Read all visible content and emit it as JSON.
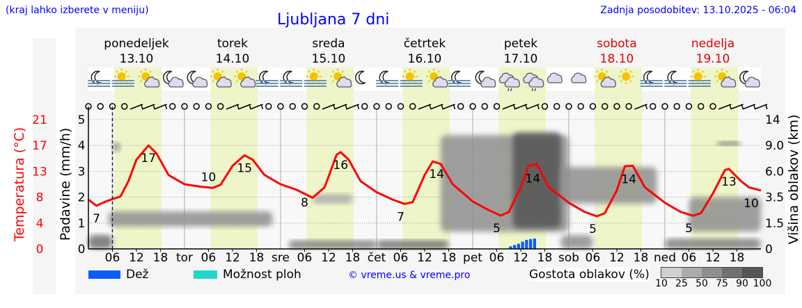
{
  "header": {
    "hint": "(kraj lahko izberete v meniju)",
    "title": "Ljubljana 7 dni",
    "updated": "Zadnja posodobitev: 13.10.2025 - 06:04"
  },
  "days": [
    {
      "name": "ponedeljek",
      "date": "13.10",
      "weekend": false
    },
    {
      "name": "torek",
      "date": "14.10",
      "weekend": false
    },
    {
      "name": "sreda",
      "date": "15.10",
      "weekend": false
    },
    {
      "name": "četrtek",
      "date": "16.10",
      "weekend": false
    },
    {
      "name": "petek",
      "date": "17.10",
      "weekend": false
    },
    {
      "name": "sobota",
      "date": "18.10",
      "weekend": true
    },
    {
      "name": "nedelja",
      "date": "19.10",
      "weekend": true
    }
  ],
  "legend": {
    "rain": "Dež",
    "showers": "Možnost ploh",
    "copyright": "© vreme.us & vreme.pro",
    "cloud_density": "Gostota oblakov (%)",
    "density_ticks": [
      "10",
      "25",
      "50",
      "75",
      "90",
      "100"
    ]
  },
  "colors": {
    "rain": "#0a5cff",
    "showers": "#20d8c8",
    "temperature": "#ff0000",
    "daylight": "#eef5c8",
    "link": "#0000ff",
    "weekend": "#e00000"
  },
  "chart_data": {
    "type": "line",
    "x_day_ticks": [
      "tor",
      "sre",
      "čet",
      "pet",
      "sob",
      "ned"
    ],
    "x_hour_ticks": [
      "06",
      "12",
      "18"
    ],
    "now_hour": 6,
    "left_axis": {
      "label": "Padavine (mm/h)",
      "range": [
        0,
        5
      ],
      "ticks": [
        "0",
        "1",
        "2",
        "3",
        "4",
        "5"
      ]
    },
    "temp_axis": {
      "label": "Temperatura (°C)",
      "range": [
        0,
        21
      ],
      "ticks": [
        "0",
        "4",
        "8",
        "13",
        "17",
        "21"
      ]
    },
    "right_axis": {
      "label": "Višina oblakov (km)",
      "ticks": [
        "0",
        "1.5",
        "3.5",
        "6.0",
        "9.0",
        "14"
      ]
    },
    "grid": true,
    "daylight_hours": [
      6.5,
      18.3
    ],
    "temperature": [
      [
        0,
        8
      ],
      [
        2,
        7
      ],
      [
        4,
        7.6
      ],
      [
        6,
        8.1
      ],
      [
        8,
        8.5
      ],
      [
        10,
        11
      ],
      [
        12,
        14.5
      ],
      [
        15,
        16.8
      ],
      [
        17,
        15.5
      ],
      [
        20,
        12
      ],
      [
        24,
        10.5
      ],
      [
        28,
        10.1
      ],
      [
        31,
        9.9
      ],
      [
        33,
        10.4
      ],
      [
        36,
        13.5
      ],
      [
        39,
        15.2
      ],
      [
        41,
        14.5
      ],
      [
        44,
        12
      ],
      [
        48,
        10.5
      ],
      [
        52,
        9.6
      ],
      [
        56,
        8.3
      ],
      [
        59,
        10
      ],
      [
        62,
        15.3
      ],
      [
        63,
        15.7
      ],
      [
        65,
        14.5
      ],
      [
        68,
        11
      ],
      [
        72,
        9.2
      ],
      [
        76,
        8
      ],
      [
        79,
        7.3
      ],
      [
        81,
        7.6
      ],
      [
        84,
        12
      ],
      [
        86,
        14.2
      ],
      [
        88,
        13.8
      ],
      [
        91,
        10.5
      ],
      [
        96,
        7.7
      ],
      [
        100,
        6.3
      ],
      [
        103,
        5.4
      ],
      [
        105,
        6
      ],
      [
        108,
        10
      ],
      [
        110,
        13.5
      ],
      [
        112,
        13.8
      ],
      [
        115,
        10
      ],
      [
        120,
        7.5
      ],
      [
        124,
        6
      ],
      [
        127,
        5.3
      ],
      [
        129,
        5.8
      ],
      [
        132,
        9.5
      ],
      [
        134,
        13.4
      ],
      [
        136,
        13.5
      ],
      [
        139,
        10
      ],
      [
        144,
        7.5
      ],
      [
        148,
        6
      ],
      [
        151,
        5.4
      ],
      [
        153,
        5.8
      ],
      [
        156,
        9
      ],
      [
        159,
        12.8
      ],
      [
        160,
        13
      ],
      [
        163,
        11
      ],
      [
        165,
        10
      ],
      [
        168,
        9.5
      ]
    ],
    "temp_labels": [
      {
        "h": 2,
        "v": "7",
        "pos": "below"
      },
      {
        "h": 15,
        "v": "17",
        "pos": "below"
      },
      {
        "h": 30,
        "v": "10",
        "pos": "above"
      },
      {
        "h": 39,
        "v": "15",
        "pos": "below"
      },
      {
        "h": 54,
        "v": "8",
        "pos": "below"
      },
      {
        "h": 63,
        "v": "16",
        "pos": "below"
      },
      {
        "h": 78,
        "v": "7",
        "pos": "below"
      },
      {
        "h": 87,
        "v": "14",
        "pos": "below"
      },
      {
        "h": 102,
        "v": "5",
        "pos": "below"
      },
      {
        "h": 111,
        "v": "14",
        "pos": "below"
      },
      {
        "h": 126,
        "v": "5",
        "pos": "below"
      },
      {
        "h": 135,
        "v": "14",
        "pos": "below"
      },
      {
        "h": 150,
        "v": "5",
        "pos": "below"
      },
      {
        "h": 160,
        "v": "13",
        "pos": "below"
      },
      {
        "h": 167,
        "v": "10",
        "pos": "below"
      }
    ],
    "rain": [
      [
        105,
        0.1
      ],
      [
        106,
        0.15
      ],
      [
        107,
        0.2
      ],
      [
        108,
        0.28
      ],
      [
        109,
        0.35
      ],
      [
        110,
        0.38
      ],
      [
        111,
        0.4
      ]
    ],
    "clouds": [
      {
        "h": [
          0,
          6
        ],
        "km": [
          0,
          0.8
        ],
        "density": 75
      },
      {
        "h": [
          6,
          8
        ],
        "km": [
          8.3,
          9.6
        ],
        "density": 50
      },
      {
        "h": [
          5,
          46
        ],
        "km": [
          1.3,
          2.4
        ],
        "density": 50
      },
      {
        "h": [
          56,
          66
        ],
        "km": [
          3.0,
          3.8
        ],
        "density": 25
      },
      {
        "h": [
          50,
          72
        ],
        "km": [
          0,
          0.5
        ],
        "density": 60
      },
      {
        "h": [
          72,
          90
        ],
        "km": [
          0,
          0.5
        ],
        "density": 75
      },
      {
        "h": [
          88,
          120
        ],
        "km": [
          1.0,
          11
        ],
        "density": 50
      },
      {
        "h": [
          106,
          118
        ],
        "km": [
          1.2,
          11.5
        ],
        "density": 90
      },
      {
        "h": [
          118,
          142
        ],
        "km": [
          3.0,
          6.5
        ],
        "density": 50
      },
      {
        "h": [
          118,
          126
        ],
        "km": [
          0,
          0.8
        ],
        "density": 50
      },
      {
        "h": [
          144,
          168
        ],
        "km": [
          0,
          0.6
        ],
        "density": 60
      },
      {
        "h": [
          150,
          168
        ],
        "km": [
          1.0,
          3.5
        ],
        "density": 50
      },
      {
        "h": [
          157,
          163
        ],
        "km": [
          9.0,
          9.8
        ],
        "density": 75
      }
    ],
    "weather_icons": [
      "moon-fog",
      "sun-fog",
      "sun-cloud",
      "moon-cloud",
      "moon-cloud",
      "sun-cloud",
      "sun-cloud",
      "moon-fog",
      "moon-fog",
      "sun-fog",
      "sun-cloud",
      "moon",
      "moon-fog",
      "sun-fog",
      "sun-cloud",
      "moon-fog",
      "moon-cloud",
      "cloud-drizzle",
      "cloud-drizzle",
      "cloud",
      "cloud",
      "sun-cloud",
      "sun",
      "moon-fog",
      "moon-fog",
      "sun-fog",
      "sun-cloud",
      "moon-cloud"
    ],
    "wind": "oooobbbooooobbbooooobbbooooobbboooobbbooooooooboooooobbbbb"
  }
}
